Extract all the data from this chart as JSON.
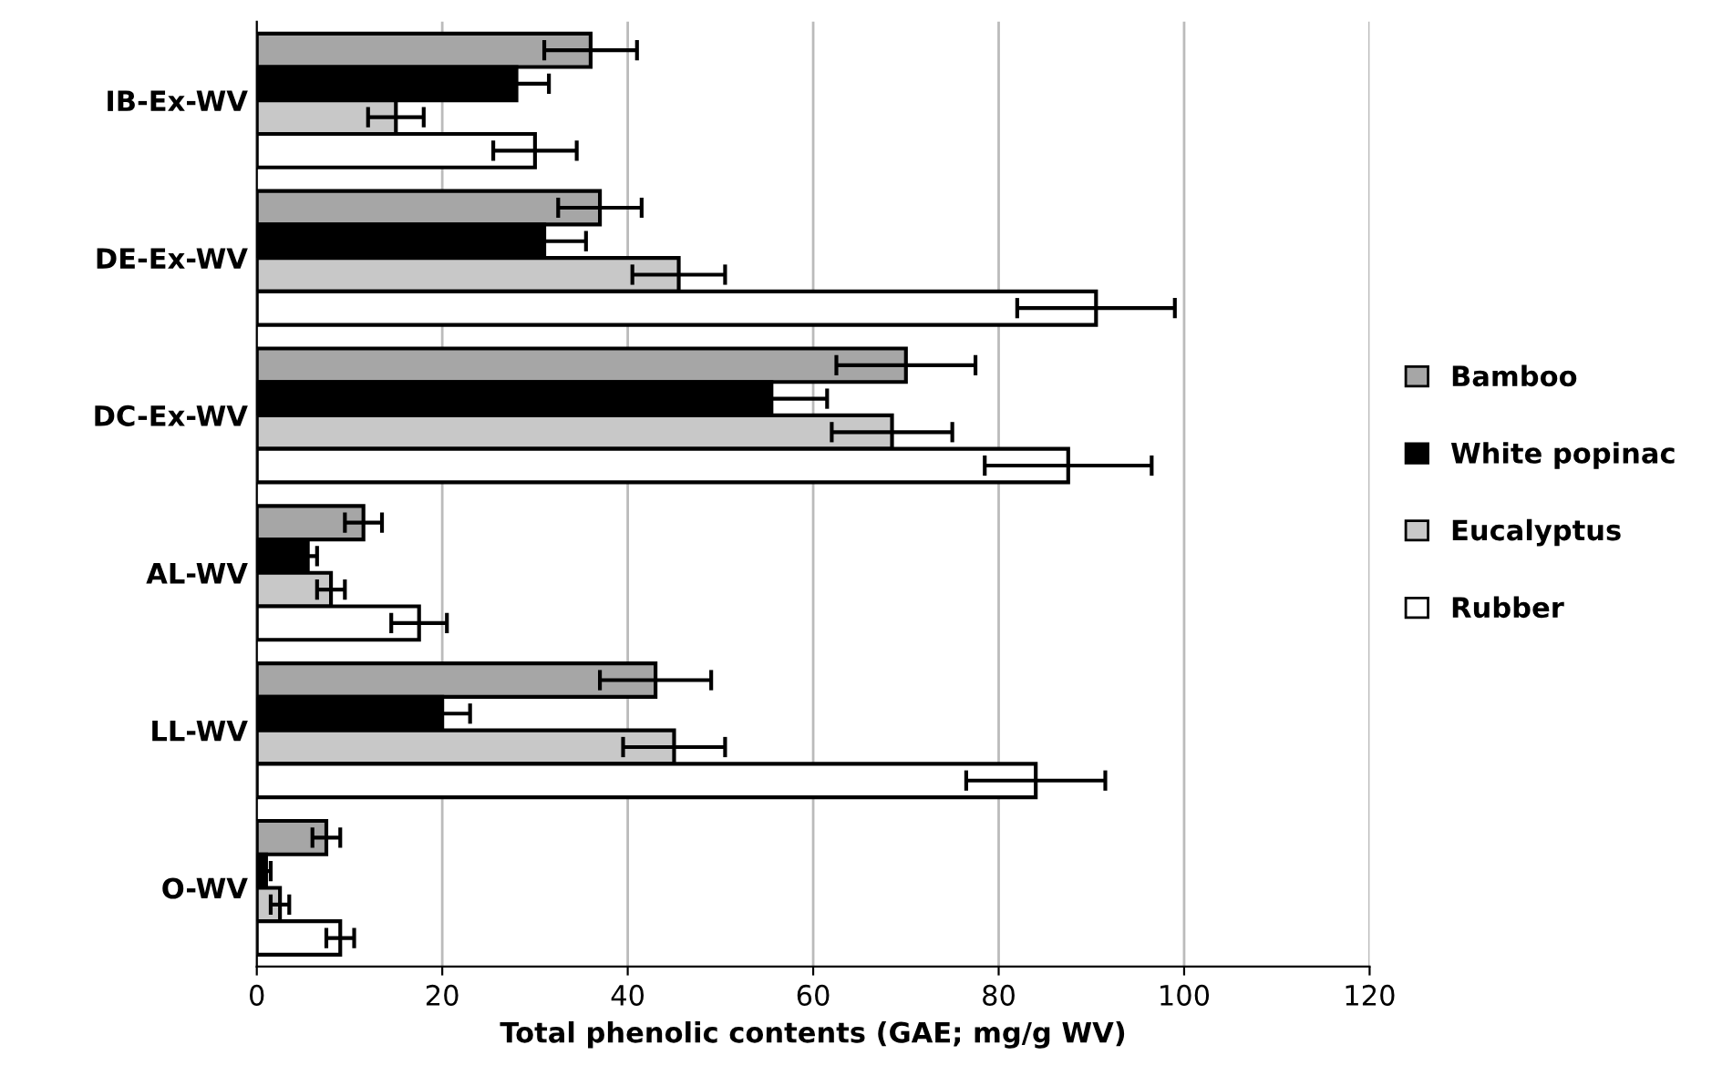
{
  "chart_data": {
    "type": "bar",
    "orientation": "horizontal",
    "xlabel": "Total phenolic contents (GAE; mg/g WV)",
    "categories": [
      "IB-Ex-WV",
      "DE-Ex-WV",
      "DC-Ex-WV",
      "AL-WV",
      "LL-WV",
      "O-WV"
    ],
    "series": [
      {
        "name": "Bamboo",
        "color": "#a6a6a6",
        "values": [
          36,
          37,
          70,
          11.5,
          43,
          7.5
        ],
        "errors": [
          5,
          4.5,
          7.5,
          2,
          6,
          1.5
        ]
      },
      {
        "name": "White popinac",
        "color": "#000000",
        "values": [
          28,
          31,
          55.5,
          5.5,
          20,
          1
        ],
        "errors": [
          3.5,
          4.5,
          6,
          1,
          3,
          0.5
        ]
      },
      {
        "name": "Eucalyptus",
        "color": "#c8c8c8",
        "values": [
          15,
          45.5,
          68.5,
          8,
          45,
          2.5
        ],
        "errors": [
          3,
          5,
          6.5,
          1.5,
          5.5,
          1
        ]
      },
      {
        "name": "Rubber",
        "color": "#ffffff",
        "values": [
          30,
          90.5,
          87.5,
          17.5,
          84,
          9
        ],
        "errors": [
          4.5,
          8.5,
          9,
          3,
          7.5,
          1.5
        ]
      }
    ],
    "xlim": [
      0,
      120
    ],
    "xticks": [
      0,
      20,
      40,
      60,
      80,
      100,
      120
    ],
    "grid": "x",
    "legend": "right"
  }
}
